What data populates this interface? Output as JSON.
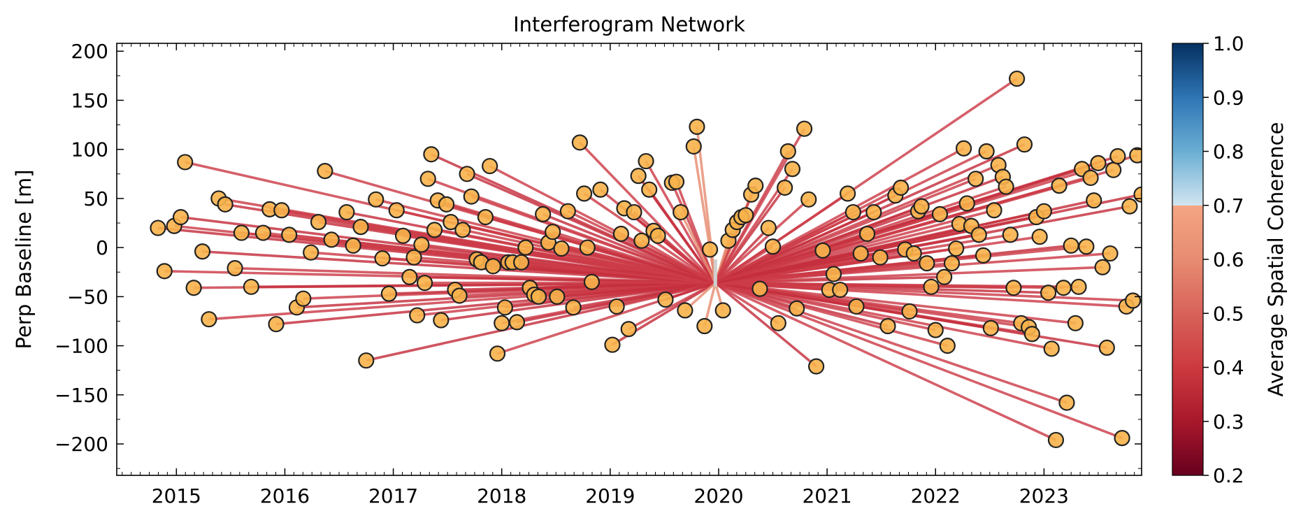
{
  "chart_data": {
    "type": "scatter",
    "title": "Interferogram Network",
    "xlabel": "",
    "ylabel": "Perp Baseline [m]",
    "xlim": [
      2014.45,
      2023.9
    ],
    "ylim": [
      -232,
      208
    ],
    "x_ticks": [
      2015,
      2016,
      2017,
      2018,
      2019,
      2020,
      2021,
      2022,
      2023
    ],
    "y_ticks": [
      200,
      150,
      100,
      50,
      0,
      -50,
      -100,
      -150,
      -200
    ],
    "y_tick_labels": [
      "200",
      "150",
      "100",
      "50",
      "0",
      "−50",
      "−100",
      "−150",
      "−200"
    ],
    "grid": false,
    "reference_date": {
      "x": 2019.97,
      "y": -36
    },
    "colorbar": {
      "label": "Average Spatial Coherence",
      "range": [
        0.2,
        1.0
      ],
      "ticks": [
        "1.0",
        "0.9",
        "0.8",
        "0.7",
        "0.6",
        "0.5",
        "0.4",
        "0.3",
        "0.2"
      ],
      "tick_values": [
        1.0,
        0.9,
        0.8,
        0.7,
        0.6,
        0.5,
        0.4,
        0.3,
        0.2
      ],
      "stops": [
        {
          "v": 0.2,
          "color": "#67001f"
        },
        {
          "v": 0.3,
          "color": "#a8182b"
        },
        {
          "v": 0.4,
          "color": "#cc3a3f"
        },
        {
          "v": 0.5,
          "color": "#d8625a"
        },
        {
          "v": 0.6,
          "color": "#e78c72"
        },
        {
          "v": 0.7,
          "color": "#f4a582"
        },
        {
          "v": 0.7,
          "color": "#d1e5f0"
        },
        {
          "v": 0.8,
          "color": "#6aaed3"
        },
        {
          "v": 0.9,
          "color": "#2e75b4"
        },
        {
          "v": 1.0,
          "color": "#053061"
        }
      ]
    },
    "marker_color": "#f7b34a",
    "marker_edge": "#222222",
    "line_color": "#cc3c48",
    "acquisitions": [
      {
        "x": 2014.83,
        "y": 20
      },
      {
        "x": 2014.89,
        "y": -24
      },
      {
        "x": 2014.98,
        "y": 22
      },
      {
        "x": 2015.04,
        "y": 31
      },
      {
        "x": 2015.08,
        "y": 87
      },
      {
        "x": 2015.16,
        "y": -41
      },
      {
        "x": 2015.24,
        "y": -4
      },
      {
        "x": 2015.3,
        "y": -73
      },
      {
        "x": 2015.39,
        "y": 50
      },
      {
        "x": 2015.45,
        "y": 44
      },
      {
        "x": 2015.54,
        "y": -21
      },
      {
        "x": 2015.6,
        "y": 15
      },
      {
        "x": 2015.69,
        "y": -40
      },
      {
        "x": 2015.8,
        "y": 15
      },
      {
        "x": 2015.86,
        "y": 39
      },
      {
        "x": 2015.92,
        "y": -78
      },
      {
        "x": 2015.97,
        "y": 38
      },
      {
        "x": 2016.04,
        "y": 13
      },
      {
        "x": 2016.11,
        "y": -61
      },
      {
        "x": 2016.17,
        "y": -52
      },
      {
        "x": 2016.24,
        "y": -5
      },
      {
        "x": 2016.31,
        "y": 26
      },
      {
        "x": 2016.37,
        "y": 78
      },
      {
        "x": 2016.43,
        "y": 8
      },
      {
        "x": 2016.57,
        "y": 36
      },
      {
        "x": 2016.63,
        "y": 2
      },
      {
        "x": 2016.7,
        "y": 21
      },
      {
        "x": 2016.75,
        "y": -115
      },
      {
        "x": 2016.84,
        "y": 49
      },
      {
        "x": 2016.9,
        "y": -11
      },
      {
        "x": 2016.96,
        "y": -47
      },
      {
        "x": 2017.03,
        "y": 38
      },
      {
        "x": 2017.09,
        "y": 12
      },
      {
        "x": 2017.15,
        "y": -30
      },
      {
        "x": 2017.19,
        "y": -10
      },
      {
        "x": 2017.22,
        "y": -69
      },
      {
        "x": 2017.26,
        "y": 3
      },
      {
        "x": 2017.29,
        "y": -36
      },
      {
        "x": 2017.32,
        "y": 70
      },
      {
        "x": 2017.35,
        "y": 95
      },
      {
        "x": 2017.38,
        "y": 18
      },
      {
        "x": 2017.41,
        "y": 48
      },
      {
        "x": 2017.44,
        "y": -74
      },
      {
        "x": 2017.49,
        "y": 44
      },
      {
        "x": 2017.53,
        "y": 26
      },
      {
        "x": 2017.57,
        "y": -43
      },
      {
        "x": 2017.61,
        "y": -49
      },
      {
        "x": 2017.64,
        "y": 18
      },
      {
        "x": 2017.68,
        "y": 75
      },
      {
        "x": 2017.72,
        "y": 52
      },
      {
        "x": 2017.77,
        "y": -12
      },
      {
        "x": 2017.81,
        "y": -15
      },
      {
        "x": 2017.85,
        "y": 31
      },
      {
        "x": 2017.89,
        "y": 83
      },
      {
        "x": 2017.92,
        "y": -19
      },
      {
        "x": 2017.96,
        "y": -108
      },
      {
        "x": 2018.0,
        "y": -77
      },
      {
        "x": 2018.03,
        "y": -61
      },
      {
        "x": 2018.06,
        "y": -15
      },
      {
        "x": 2018.1,
        "y": -15
      },
      {
        "x": 2018.14,
        "y": -76
      },
      {
        "x": 2018.18,
        "y": -15
      },
      {
        "x": 2018.22,
        "y": 0
      },
      {
        "x": 2018.26,
        "y": -41
      },
      {
        "x": 2018.3,
        "y": -48
      },
      {
        "x": 2018.34,
        "y": -50
      },
      {
        "x": 2018.38,
        "y": 34
      },
      {
        "x": 2018.43,
        "y": 5
      },
      {
        "x": 2018.47,
        "y": 16
      },
      {
        "x": 2018.51,
        "y": -50
      },
      {
        "x": 2018.55,
        "y": -1
      },
      {
        "x": 2018.61,
        "y": 37
      },
      {
        "x": 2018.66,
        "y": -61
      },
      {
        "x": 2018.72,
        "y": 107
      },
      {
        "x": 2018.76,
        "y": 55
      },
      {
        "x": 2018.79,
        "y": 0
      },
      {
        "x": 2018.83,
        "y": -35
      },
      {
        "x": 2018.91,
        "y": 59
      },
      {
        "x": 2019.02,
        "y": -99
      },
      {
        "x": 2019.06,
        "y": -60
      },
      {
        "x": 2019.1,
        "y": 14
      },
      {
        "x": 2019.13,
        "y": 40
      },
      {
        "x": 2019.17,
        "y": -83
      },
      {
        "x": 2019.22,
        "y": 36
      },
      {
        "x": 2019.26,
        "y": 73
      },
      {
        "x": 2019.29,
        "y": 7
      },
      {
        "x": 2019.33,
        "y": 88
      },
      {
        "x": 2019.36,
        "y": 59
      },
      {
        "x": 2019.4,
        "y": 17
      },
      {
        "x": 2019.44,
        "y": 12
      },
      {
        "x": 2019.51,
        "y": -53
      },
      {
        "x": 2019.57,
        "y": 66
      },
      {
        "x": 2019.61,
        "y": 67
      },
      {
        "x": 2019.65,
        "y": 36
      },
      {
        "x": 2019.69,
        "y": -64
      },
      {
        "x": 2019.77,
        "y": 103
      },
      {
        "x": 2019.8,
        "y": 123
      },
      {
        "x": 2019.87,
        "y": -80
      },
      {
        "x": 2019.92,
        "y": -2
      },
      {
        "x": 2020.04,
        "y": -64
      },
      {
        "x": 2020.09,
        "y": 7
      },
      {
        "x": 2020.13,
        "y": 18
      },
      {
        "x": 2020.17,
        "y": 26
      },
      {
        "x": 2020.21,
        "y": 31
      },
      {
        "x": 2020.25,
        "y": 33
      },
      {
        "x": 2020.3,
        "y": 54
      },
      {
        "x": 2020.34,
        "y": 63
      },
      {
        "x": 2020.38,
        "y": -42
      },
      {
        "x": 2020.46,
        "y": 20
      },
      {
        "x": 2020.5,
        "y": 1
      },
      {
        "x": 2020.55,
        "y": -77
      },
      {
        "x": 2020.61,
        "y": 61
      },
      {
        "x": 2020.64,
        "y": 98
      },
      {
        "x": 2020.68,
        "y": 80
      },
      {
        "x": 2020.72,
        "y": -62
      },
      {
        "x": 2020.79,
        "y": 121
      },
      {
        "x": 2020.83,
        "y": 49
      },
      {
        "x": 2020.9,
        "y": -121
      },
      {
        "x": 2020.96,
        "y": -3
      },
      {
        "x": 2021.02,
        "y": -43
      },
      {
        "x": 2021.06,
        "y": -27
      },
      {
        "x": 2021.12,
        "y": -43
      },
      {
        "x": 2021.19,
        "y": 55
      },
      {
        "x": 2021.24,
        "y": 36
      },
      {
        "x": 2021.27,
        "y": -60
      },
      {
        "x": 2021.31,
        "y": -6
      },
      {
        "x": 2021.37,
        "y": 14
      },
      {
        "x": 2021.43,
        "y": 36
      },
      {
        "x": 2021.49,
        "y": -10
      },
      {
        "x": 2021.56,
        "y": -80
      },
      {
        "x": 2021.63,
        "y": 53
      },
      {
        "x": 2021.68,
        "y": 61
      },
      {
        "x": 2021.72,
        "y": -2
      },
      {
        "x": 2021.76,
        "y": -65
      },
      {
        "x": 2021.8,
        "y": -6
      },
      {
        "x": 2021.84,
        "y": 37
      },
      {
        "x": 2021.87,
        "y": 42
      },
      {
        "x": 2021.92,
        "y": -16
      },
      {
        "x": 2021.96,
        "y": -40
      },
      {
        "x": 2022.0,
        "y": -84
      },
      {
        "x": 2022.04,
        "y": 34
      },
      {
        "x": 2022.08,
        "y": -30
      },
      {
        "x": 2022.11,
        "y": -100
      },
      {
        "x": 2022.15,
        "y": -16
      },
      {
        "x": 2022.19,
        "y": -1
      },
      {
        "x": 2022.22,
        "y": 24
      },
      {
        "x": 2022.26,
        "y": 101
      },
      {
        "x": 2022.29,
        "y": 45
      },
      {
        "x": 2022.33,
        "y": 22
      },
      {
        "x": 2022.37,
        "y": 70
      },
      {
        "x": 2022.4,
        "y": 13
      },
      {
        "x": 2022.44,
        "y": -8
      },
      {
        "x": 2022.47,
        "y": 98
      },
      {
        "x": 2022.51,
        "y": -82
      },
      {
        "x": 2022.54,
        "y": 38
      },
      {
        "x": 2022.58,
        "y": 84
      },
      {
        "x": 2022.62,
        "y": 72
      },
      {
        "x": 2022.65,
        "y": 62
      },
      {
        "x": 2022.69,
        "y": 13
      },
      {
        "x": 2022.72,
        "y": -41
      },
      {
        "x": 2022.75,
        "y": 172
      },
      {
        "x": 2022.79,
        "y": -77
      },
      {
        "x": 2022.82,
        "y": 105
      },
      {
        "x": 2022.86,
        "y": -81
      },
      {
        "x": 2022.89,
        "y": -88
      },
      {
        "x": 2022.93,
        "y": 31
      },
      {
        "x": 2022.96,
        "y": 11
      },
      {
        "x": 2023.0,
        "y": 37
      },
      {
        "x": 2023.04,
        "y": -46
      },
      {
        "x": 2023.07,
        "y": -103
      },
      {
        "x": 2023.11,
        "y": -196
      },
      {
        "x": 2023.14,
        "y": 63
      },
      {
        "x": 2023.18,
        "y": -41
      },
      {
        "x": 2023.21,
        "y": -158
      },
      {
        "x": 2023.25,
        "y": 2
      },
      {
        "x": 2023.29,
        "y": -77
      },
      {
        "x": 2023.32,
        "y": -40
      },
      {
        "x": 2023.35,
        "y": 80
      },
      {
        "x": 2023.39,
        "y": 1
      },
      {
        "x": 2023.43,
        "y": 71
      },
      {
        "x": 2023.46,
        "y": 48
      },
      {
        "x": 2023.5,
        "y": 86
      },
      {
        "x": 2023.54,
        "y": -20
      },
      {
        "x": 2023.58,
        "y": -102
      },
      {
        "x": 2023.61,
        "y": -6
      },
      {
        "x": 2023.64,
        "y": 79
      },
      {
        "x": 2023.68,
        "y": 93
      },
      {
        "x": 2023.72,
        "y": -194
      },
      {
        "x": 2023.76,
        "y": -60
      },
      {
        "x": 2023.79,
        "y": 42
      },
      {
        "x": 2023.82,
        "y": -54
      },
      {
        "x": 2023.86,
        "y": 94
      },
      {
        "x": 2023.9,
        "y": 54
      }
    ]
  }
}
